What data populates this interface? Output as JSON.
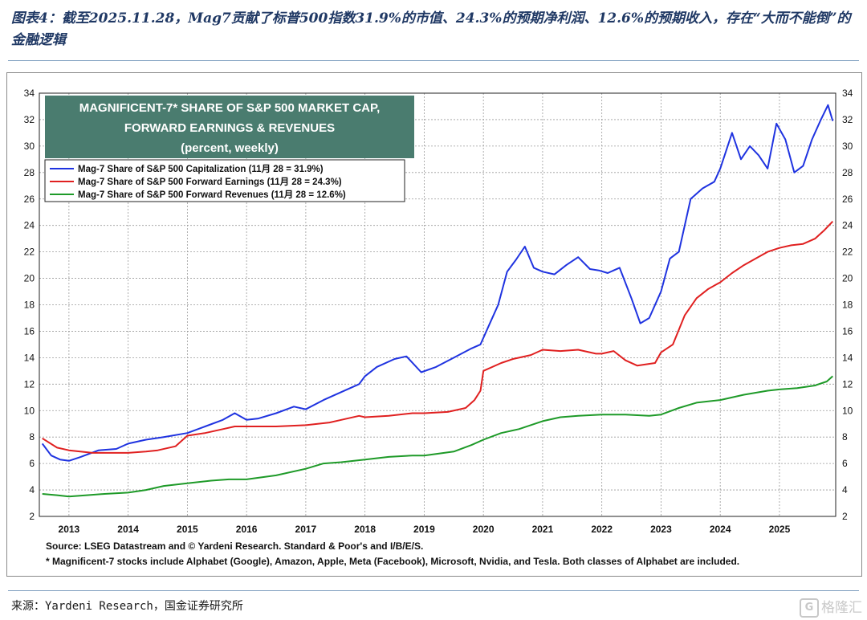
{
  "report": {
    "title": "图表4：截至2025.11.28，Mag7贡献了标普500指数31.9%的市值、24.3%的预期净利润、12.6%的预期收入，存在“大而不能倒”的金融逻辑",
    "source_label": "来源：",
    "source_text": "Yardeni Research，",
    "source_text_zh": "国金证券研究所",
    "watermark": "格隆汇"
  },
  "chart_data": {
    "type": "line",
    "title_lines": [
      "MAGNIFICENT-7* SHARE OF S&P 500 MARKET CAP,",
      "FORWARD EARNINGS & REVENUES",
      "(percent, weekly)"
    ],
    "title_box_color": "#4a7c6f",
    "xlabel": "",
    "ylabel": "",
    "ylim": [
      2,
      34
    ],
    "yticks": [
      2,
      4,
      6,
      8,
      10,
      12,
      14,
      16,
      18,
      20,
      22,
      24,
      26,
      28,
      30,
      32,
      34
    ],
    "xlim": [
      2012.5,
      2025.95
    ],
    "xticks": [
      2013,
      2014,
      2015,
      2016,
      2017,
      2018,
      2019,
      2020,
      2021,
      2022,
      2023,
      2024,
      2025
    ],
    "grid": true,
    "legend_position": "top-left",
    "legend_entries": [
      "Mag-7 Share of S&P 500 Capitalization (11月 28 = 31.9%)",
      "Mag-7 Share of S&P 500 Forward Earnings (11月 28 = 24.3%)",
      "Mag-7 Share of S&P 500 Forward Revenues (11月 28 = 12.6%)"
    ],
    "source_line": "Source: LSEG Datastream and © Yardeni Research. Standard & Poor's and I/B/E/S.",
    "footnote": "* Magnificent-7 stocks include Alphabet (Google), Amazon, Apple, Meta (Facebook), Microsoft, Nvidia, and Tesla. Both classes of Alphabet are included.",
    "series": [
      {
        "name": "Mag-7 Share of S&P 500 Capitalization",
        "color": "#1f33e0",
        "x": [
          2012.55,
          2012.7,
          2012.85,
          2013.0,
          2013.2,
          2013.5,
          2013.8,
          2014.0,
          2014.3,
          2014.6,
          2015.0,
          2015.3,
          2015.6,
          2015.8,
          2016.0,
          2016.2,
          2016.5,
          2016.8,
          2017.0,
          2017.3,
          2017.6,
          2017.9,
          2018.0,
          2018.2,
          2018.5,
          2018.7,
          2018.95,
          2019.2,
          2019.5,
          2019.8,
          2019.95,
          2020.1,
          2020.25,
          2020.4,
          2020.55,
          2020.7,
          2020.85,
          2021.0,
          2021.2,
          2021.4,
          2021.6,
          2021.8,
          2021.95,
          2022.1,
          2022.3,
          2022.5,
          2022.65,
          2022.8,
          2022.95,
          2023.0,
          2023.15,
          2023.3,
          2023.5,
          2023.7,
          2023.9,
          2024.0,
          2024.2,
          2024.35,
          2024.5,
          2024.65,
          2024.8,
          2024.95,
          2025.1,
          2025.25,
          2025.4,
          2025.55,
          2025.7,
          2025.82,
          2025.9
        ],
        "values": [
          7.5,
          6.6,
          6.3,
          6.2,
          6.5,
          7.0,
          7.1,
          7.5,
          7.8,
          8.0,
          8.3,
          8.8,
          9.3,
          9.8,
          9.3,
          9.4,
          9.8,
          10.3,
          10.1,
          10.8,
          11.4,
          12.0,
          12.6,
          13.3,
          13.9,
          14.1,
          12.9,
          13.3,
          14.0,
          14.7,
          15.0,
          16.5,
          18.0,
          20.5,
          21.4,
          22.4,
          20.8,
          20.5,
          20.3,
          21.0,
          21.6,
          20.7,
          20.6,
          20.4,
          20.8,
          18.5,
          16.6,
          17.0,
          18.5,
          19.0,
          21.5,
          22.0,
          26.0,
          26.8,
          27.3,
          28.3,
          31.0,
          29.0,
          30.0,
          29.3,
          28.3,
          31.7,
          30.5,
          28.0,
          28.5,
          30.5,
          32.0,
          33.1,
          31.9
        ]
      },
      {
        "name": "Mag-7 Share of S&P 500 Forward Earnings",
        "color": "#e02020",
        "x": [
          2012.55,
          2012.8,
          2013.0,
          2013.4,
          2013.8,
          2014.0,
          2014.3,
          2014.5,
          2014.8,
          2015.0,
          2015.3,
          2015.6,
          2015.8,
          2016.0,
          2016.5,
          2017.0,
          2017.4,
          2017.6,
          2017.9,
          2018.0,
          2018.4,
          2018.8,
          2019.0,
          2019.4,
          2019.7,
          2019.85,
          2019.95,
          2020.0,
          2020.3,
          2020.5,
          2020.8,
          2021.0,
          2021.3,
          2021.6,
          2021.9,
          2022.0,
          2022.2,
          2022.4,
          2022.6,
          2022.9,
          2023.0,
          2023.2,
          2023.4,
          2023.6,
          2023.8,
          2024.0,
          2024.2,
          2024.4,
          2024.6,
          2024.8,
          2025.0,
          2025.2,
          2025.4,
          2025.6,
          2025.75,
          2025.9
        ],
        "values": [
          7.9,
          7.2,
          7.0,
          6.8,
          6.8,
          6.8,
          6.9,
          7.0,
          7.3,
          8.1,
          8.3,
          8.6,
          8.8,
          8.8,
          8.8,
          8.9,
          9.1,
          9.3,
          9.6,
          9.5,
          9.6,
          9.8,
          9.8,
          9.9,
          10.2,
          10.8,
          11.5,
          13.0,
          13.6,
          13.9,
          14.2,
          14.6,
          14.5,
          14.6,
          14.3,
          14.3,
          14.5,
          13.8,
          13.4,
          13.6,
          14.4,
          15.0,
          17.2,
          18.5,
          19.2,
          19.7,
          20.4,
          21.0,
          21.5,
          22.0,
          22.3,
          22.5,
          22.6,
          23.0,
          23.6,
          24.3
        ]
      },
      {
        "name": "Mag-7 Share of S&P 500 Forward Revenues",
        "color": "#1e9a28",
        "x": [
          2012.55,
          2012.8,
          2013.0,
          2013.3,
          2013.6,
          2014.0,
          2014.3,
          2014.6,
          2015.0,
          2015.4,
          2015.7,
          2016.0,
          2016.5,
          2017.0,
          2017.3,
          2017.6,
          2018.0,
          2018.4,
          2018.8,
          2019.0,
          2019.5,
          2019.8,
          2020.0,
          2020.3,
          2020.6,
          2021.0,
          2021.3,
          2021.6,
          2022.0,
          2022.4,
          2022.8,
          2023.0,
          2023.3,
          2023.6,
          2024.0,
          2024.4,
          2024.8,
          2025.0,
          2025.3,
          2025.6,
          2025.8,
          2025.9
        ],
        "values": [
          3.7,
          3.6,
          3.5,
          3.6,
          3.7,
          3.8,
          4.0,
          4.3,
          4.5,
          4.7,
          4.8,
          4.8,
          5.1,
          5.6,
          6.0,
          6.1,
          6.3,
          6.5,
          6.6,
          6.6,
          6.9,
          7.4,
          7.8,
          8.3,
          8.6,
          9.2,
          9.5,
          9.6,
          9.7,
          9.7,
          9.6,
          9.7,
          10.2,
          10.6,
          10.8,
          11.2,
          11.5,
          11.6,
          11.7,
          11.9,
          12.2,
          12.6
        ]
      }
    ]
  }
}
